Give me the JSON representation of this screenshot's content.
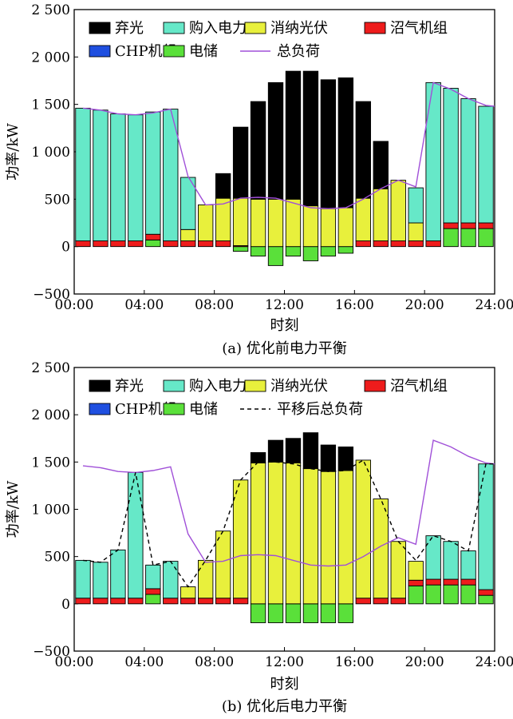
{
  "chart_data": [
    {
      "type": "bar",
      "caption": "(a) 优化前电力平衡",
      "xlabel": "时刻",
      "ylabel": "功率/kW",
      "ylim": [
        -500,
        2500
      ],
      "xlim": [
        0,
        24
      ],
      "yticks": [
        -500,
        0,
        500,
        1000,
        1500,
        2000,
        2500
      ],
      "ytick_labels": [
        "−500",
        "0",
        "500",
        "1 000",
        "1 500",
        "2 000",
        "2 500"
      ],
      "xticks": [
        0,
        4,
        8,
        12,
        16,
        20,
        24
      ],
      "xtick_labels": [
        "00:00",
        "04:00",
        "08:00",
        "12:00",
        "16:00",
        "20:00",
        "24:00"
      ],
      "legend_placement": "top",
      "legend": [
        {
          "label": "弃光",
          "color": "#000000",
          "kind": "box"
        },
        {
          "label": "购入电力",
          "color": "#66e8c8",
          "kind": "box"
        },
        {
          "label": "消纳光伏",
          "color": "#e8f03c",
          "kind": "box"
        },
        {
          "label": "沼气机组",
          "color": "#ee1c1c",
          "kind": "box"
        },
        {
          "label": "CHP机组",
          "color": "#1f4fe0",
          "kind": "box"
        },
        {
          "label": "电储",
          "color": "#5ae03a",
          "kind": "box"
        },
        {
          "label": "总负荷",
          "color": "#a050d8",
          "kind": "solid"
        }
      ],
      "hours": [
        0,
        1,
        2,
        3,
        4,
        5,
        6,
        7,
        8,
        9,
        10,
        11,
        12,
        13,
        14,
        15,
        16,
        17,
        18,
        19,
        20,
        21,
        22,
        23
      ],
      "series": [
        {
          "name": "电储",
          "color": "#5ae03a",
          "values": [
            0,
            0,
            0,
            0,
            70,
            0,
            0,
            0,
            0,
            -50,
            -100,
            -200,
            -100,
            -150,
            -100,
            -70,
            0,
            0,
            0,
            0,
            0,
            190,
            190,
            190
          ]
        },
        {
          "name": "沼气机组",
          "color": "#ee1c1c",
          "values": [
            60,
            60,
            60,
            60,
            60,
            60,
            60,
            60,
            60,
            10,
            0,
            0,
            0,
            0,
            0,
            0,
            60,
            60,
            60,
            60,
            60,
            60,
            60,
            60
          ]
        },
        {
          "name": "消纳光伏",
          "color": "#e8f03c",
          "values": [
            0,
            0,
            0,
            0,
            0,
            0,
            120,
            380,
            450,
            500,
            500,
            500,
            500,
            430,
            400,
            410,
            450,
            550,
            640,
            190,
            0,
            0,
            0,
            0
          ]
        },
        {
          "name": "购入电力",
          "color": "#66e8c8",
          "values": [
            1400,
            1380,
            1340,
            1330,
            1290,
            1390,
            550,
            0,
            0,
            0,
            0,
            0,
            0,
            0,
            0,
            0,
            0,
            0,
            0,
            370,
            1670,
            1420,
            1310,
            1230
          ]
        },
        {
          "name": "弃光",
          "color": "#000000",
          "values": [
            0,
            0,
            0,
            0,
            0,
            0,
            0,
            0,
            260,
            750,
            1030,
            1230,
            1350,
            1420,
            1360,
            1370,
            1020,
            500,
            0,
            0,
            0,
            0,
            0,
            0
          ]
        }
      ],
      "line": {
        "name": "总负荷",
        "color": "#a050d8",
        "style": "solid",
        "x": [
          0,
          1,
          2,
          3,
          4,
          5,
          6,
          7,
          8,
          9,
          10,
          11,
          12,
          13,
          14,
          15,
          16,
          17,
          18,
          19,
          20,
          21,
          22,
          23,
          23.5
        ],
        "values": [
          1460,
          1440,
          1400,
          1390,
          1410,
          1450,
          740,
          440,
          450,
          510,
          520,
          510,
          460,
          410,
          400,
          410,
          500,
          610,
          700,
          630,
          1730,
          1660,
          1560,
          1490,
          1480
        ]
      }
    },
    {
      "type": "bar",
      "caption": "(b) 优化后电力平衡",
      "xlabel": "时刻",
      "ylabel": "功率/kW",
      "ylim": [
        -500,
        2500
      ],
      "xlim": [
        0,
        24
      ],
      "yticks": [
        -500,
        0,
        500,
        1000,
        1500,
        2000,
        2500
      ],
      "ytick_labels": [
        "−500",
        "0",
        "500",
        "1 000",
        "1 500",
        "2 000",
        "2 500"
      ],
      "xticks": [
        0,
        4,
        8,
        12,
        16,
        20,
        24
      ],
      "xtick_labels": [
        "00:00",
        "04:00",
        "08:00",
        "12:00",
        "16:00",
        "20:00",
        "24:00"
      ],
      "legend_placement": "top",
      "legend": [
        {
          "label": "弃光",
          "color": "#000000",
          "kind": "box"
        },
        {
          "label": "购入电力",
          "color": "#66e8c8",
          "kind": "box"
        },
        {
          "label": "消纳光伏",
          "color": "#e8f03c",
          "kind": "box"
        },
        {
          "label": "沼气机组",
          "color": "#ee1c1c",
          "kind": "box"
        },
        {
          "label": "CHP机组",
          "color": "#1f4fe0",
          "kind": "box"
        },
        {
          "label": "电储",
          "color": "#5ae03a",
          "kind": "box"
        },
        {
          "label": "平移后总负荷",
          "color": "#000000",
          "kind": "dashed"
        }
      ],
      "hours": [
        0,
        1,
        2,
        3,
        4,
        5,
        6,
        7,
        8,
        9,
        10,
        11,
        12,
        13,
        14,
        15,
        16,
        17,
        18,
        19,
        20,
        21,
        22,
        23
      ],
      "series": [
        {
          "name": "电储",
          "color": "#5ae03a",
          "values": [
            0,
            0,
            0,
            0,
            100,
            0,
            0,
            0,
            0,
            0,
            -200,
            -200,
            -200,
            -200,
            -200,
            -200,
            0,
            0,
            0,
            190,
            200,
            200,
            200,
            90
          ]
        },
        {
          "name": "沼气机组",
          "color": "#ee1c1c",
          "values": [
            60,
            60,
            60,
            60,
            60,
            60,
            60,
            60,
            60,
            60,
            0,
            0,
            0,
            0,
            0,
            0,
            60,
            60,
            60,
            60,
            60,
            60,
            60,
            60
          ]
        },
        {
          "name": "消纳光伏",
          "color": "#e8f03c",
          "values": [
            0,
            0,
            0,
            0,
            0,
            0,
            120,
            400,
            710,
            1250,
            1490,
            1500,
            1490,
            1430,
            1400,
            1410,
            1460,
            1050,
            600,
            200,
            0,
            0,
            0,
            0
          ]
        },
        {
          "name": "购入电力",
          "color": "#66e8c8",
          "values": [
            400,
            380,
            510,
            1330,
            250,
            390,
            0,
            0,
            0,
            0,
            0,
            0,
            0,
            0,
            0,
            0,
            0,
            0,
            0,
            0,
            460,
            400,
            300,
            1330
          ]
        },
        {
          "name": "弃光",
          "color": "#000000",
          "values": [
            0,
            0,
            0,
            0,
            0,
            0,
            0,
            0,
            0,
            0,
            110,
            230,
            260,
            380,
            280,
            250,
            0,
            0,
            0,
            0,
            0,
            0,
            0,
            0
          ]
        }
      ],
      "line": {
        "name": "平移后总负荷",
        "color": "#000000",
        "style": "dashed",
        "x": [
          0,
          1,
          2,
          3,
          4,
          5,
          6,
          7,
          8,
          9,
          10,
          11,
          12,
          13,
          14,
          15,
          16,
          17,
          18,
          19,
          20,
          21,
          22,
          23,
          23.5
        ],
        "values": [
          460,
          440,
          570,
          1390,
          410,
          450,
          180,
          460,
          770,
          1310,
          1500,
          1500,
          1480,
          1430,
          1400,
          1410,
          1520,
          1110,
          660,
          460,
          720,
          660,
          560,
          1480,
          1480
        ]
      },
      "line2": {
        "name": "总负荷",
        "color": "#a050d8",
        "style": "solid",
        "x": [
          0,
          1,
          2,
          3,
          4,
          5,
          6,
          7,
          8,
          9,
          10,
          11,
          12,
          13,
          14,
          15,
          16,
          17,
          18,
          19,
          20,
          21,
          22,
          23,
          23.5
        ],
        "values": [
          1460,
          1440,
          1400,
          1390,
          1410,
          1450,
          740,
          440,
          450,
          510,
          520,
          510,
          460,
          410,
          400,
          410,
          500,
          610,
          700,
          630,
          1730,
          1660,
          1560,
          1490,
          1480
        ]
      }
    }
  ]
}
